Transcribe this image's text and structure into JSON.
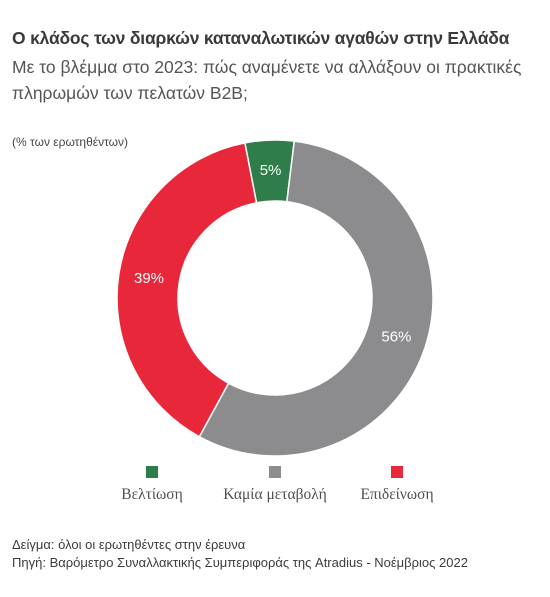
{
  "header": {
    "title": "Ο κλάδος των διαρκών καταναλωτικών αγαθών στην Ελλάδα",
    "subtitle": "Με το βλέμμα στο 2023: πώς αναμένετε να αλλάξουν οι πρακτικές πληρωμών των πελατών B2B;",
    "unit_note": "(% των ερωτηθέντων)"
  },
  "chart_data": {
    "type": "pie",
    "variant": "donut",
    "categories": [
      "Βελτίωση",
      "Καμία μεταβολή",
      "Επιδείνωση"
    ],
    "values": [
      5,
      56,
      39
    ],
    "value_labels": [
      "5%",
      "56%",
      "39%"
    ],
    "colors": [
      "#2e7d4a",
      "#8c8c8e",
      "#e8283a"
    ],
    "start_angle_deg": -11,
    "legend_position": "bottom"
  },
  "footer": {
    "sample": "Δείγμα: όλοι οι ερωτηθέντες στην έρευνα",
    "source": "Πηγή: Βαρόμετρο Συναλλακτικής Συμπεριφοράς της Atradius - Νοέμβριος 2022"
  }
}
